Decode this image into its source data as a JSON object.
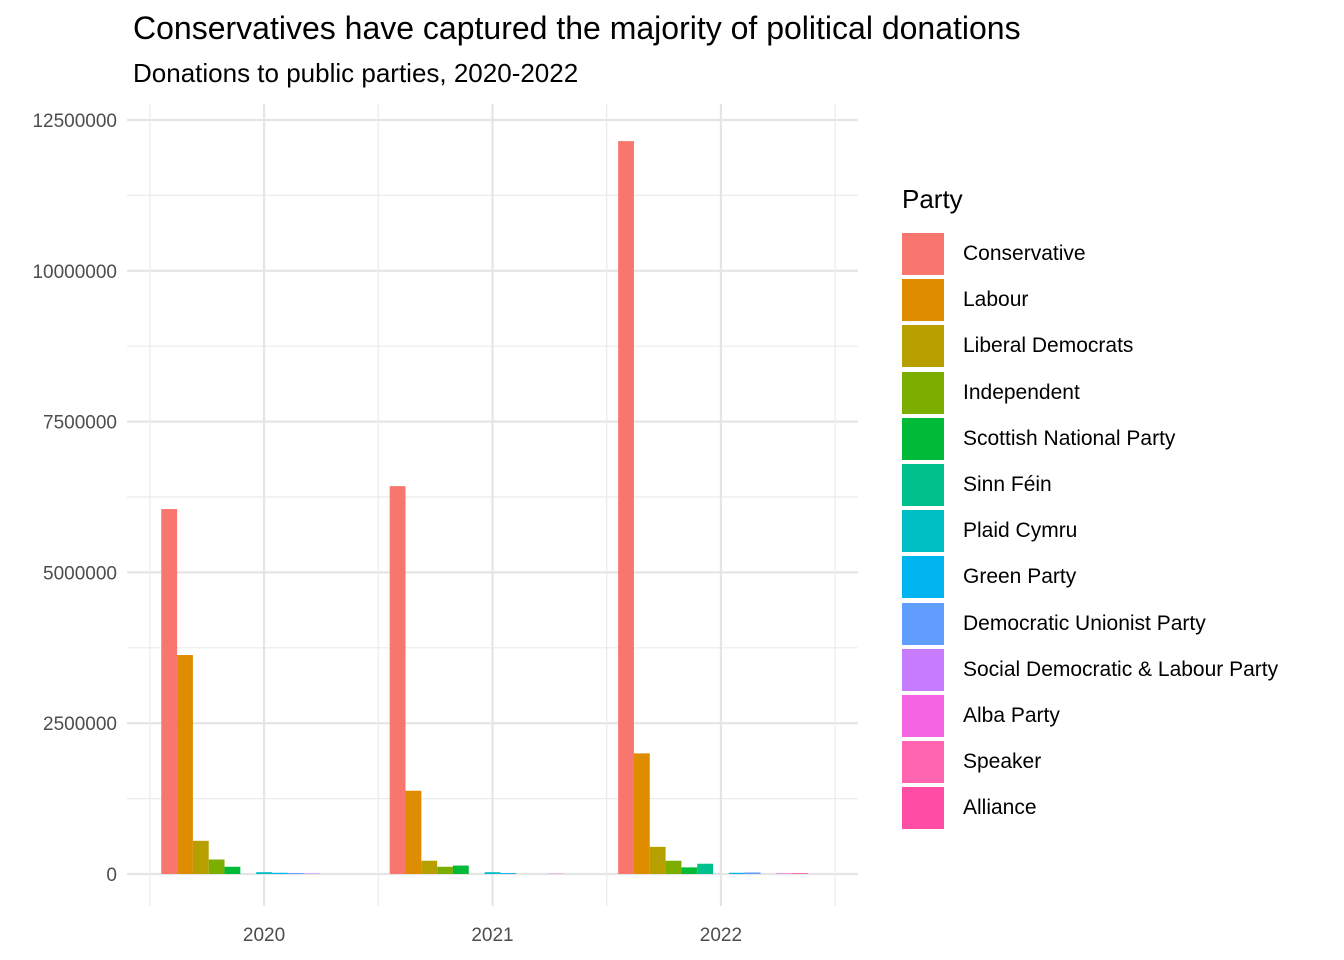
{
  "chart_data": {
    "type": "bar",
    "title": "Conservatives have captured the majority of political donations",
    "subtitle": "Donations to public parties, 2020-2022",
    "xlabel": "",
    "ylabel": "",
    "categories": [
      "2020",
      "2021",
      "2022"
    ],
    "ylim": [
      0,
      12500000
    ],
    "yticks": [
      0,
      2500000,
      5000000,
      7500000,
      10000000,
      12500000
    ],
    "ytick_labels": [
      "0",
      "2500000",
      "5000000",
      "7500000",
      "10000000",
      "12500000"
    ],
    "grid": true,
    "legend": {
      "title": "Party",
      "position": "right"
    },
    "series": [
      {
        "name": "Conservative",
        "color": "#F8766D",
        "values": [
          6050000,
          6430000,
          12150000
        ]
      },
      {
        "name": "Labour",
        "color": "#DE8C00",
        "values": [
          3630000,
          1380000,
          2000000
        ]
      },
      {
        "name": "Liberal Democrats",
        "color": "#B79F00",
        "values": [
          550000,
          220000,
          450000
        ]
      },
      {
        "name": "Independent",
        "color": "#7CAE00",
        "values": [
          240000,
          120000,
          220000
        ]
      },
      {
        "name": "Scottish National Party",
        "color": "#00BA38",
        "values": [
          120000,
          140000,
          110000
        ]
      },
      {
        "name": "Sinn Féin",
        "color": "#00C08B",
        "values": [
          0,
          0,
          170000
        ]
      },
      {
        "name": "Plaid Cymru",
        "color": "#00BFC4",
        "values": [
          30000,
          30000,
          0
        ]
      },
      {
        "name": "Green Party",
        "color": "#00B4F0",
        "values": [
          20000,
          15000,
          20000
        ]
      },
      {
        "name": "Democratic Unionist Party",
        "color": "#619CFF",
        "values": [
          15000,
          0,
          25000
        ]
      },
      {
        "name": "Social Democratic & Labour Party",
        "color": "#C77CFF",
        "values": [
          8000,
          0,
          0
        ]
      },
      {
        "name": "Alba Party",
        "color": "#F564E3",
        "values": [
          0,
          5000,
          10000
        ]
      },
      {
        "name": "Speaker",
        "color": "#FF64B0",
        "values": [
          0,
          0,
          15000
        ]
      },
      {
        "name": "Alliance",
        "color": "#FF4DA6",
        "values": [
          0,
          0,
          0
        ]
      }
    ]
  }
}
